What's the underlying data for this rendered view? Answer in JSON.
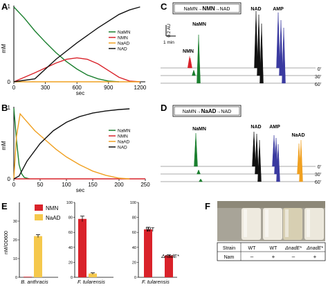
{
  "panels": {
    "A": {
      "letter": "A",
      "ylabel": "mM",
      "xlabel": "sec",
      "yticks": [
        "0",
        "1"
      ],
      "xticks": [
        "0",
        "300",
        "600",
        "900",
        "1200"
      ],
      "legend": [
        "NaMN",
        "NMN",
        "NaAD",
        "NAD"
      ]
    },
    "B": {
      "letter": "B",
      "ylabel": "mM",
      "xlabel": "sec",
      "yticks": [
        "0",
        "1"
      ],
      "xticks": [
        "0",
        "50",
        "100",
        "150",
        "200",
        "250"
      ],
      "legend": [
        "NaMN",
        "NMN",
        "NaAD",
        "NAD"
      ]
    },
    "C": {
      "letter": "C",
      "pathway": [
        "NaMN",
        "NMN",
        "NAD"
      ],
      "peaks": [
        "NaMN",
        "NMN",
        "NAD",
        "AMP"
      ],
      "scale_v": "0.2 AU",
      "scale_h": "1 min",
      "times": [
        "0'",
        "30'",
        "60'"
      ]
    },
    "D": {
      "letter": "D",
      "pathway": [
        "NaMN",
        "NaAD",
        "NAD"
      ],
      "peaks": [
        "NaMN",
        "NAD",
        "AMP",
        "NaAD"
      ],
      "times": [
        "0'",
        "30'",
        "60'"
      ]
    },
    "E": {
      "letter": "E",
      "ylabel": "nM/OD600",
      "legend": [
        "NMN",
        "NaAD"
      ],
      "group1": {
        "label": "B. anthracis",
        "yticks": [
          "0",
          "10",
          "20",
          "30"
        ]
      },
      "group2": {
        "label": "F. tularensis",
        "yticks": [
          "0",
          "20",
          "40",
          "60",
          "80",
          "100"
        ]
      },
      "group3": {
        "label": "F. tularensis",
        "yticks": [
          "0",
          "20",
          "40",
          "60",
          "80",
          "100"
        ],
        "wt": "WT",
        "mutant": "ΔnadE*"
      }
    },
    "F": {
      "letter": "F",
      "row1_label": "Strain",
      "row2_label": "Nam",
      "strains": [
        "WT",
        "WT",
        "ΔnadE*",
        "ΔnadE*"
      ],
      "nam": [
        "–",
        "+",
        "–",
        "+"
      ]
    }
  },
  "colors": {
    "NaMN": "#1a7f2e",
    "NMN": "#d9222a",
    "NaAD": "#f0a020",
    "NAD": "#111111",
    "AMP": "#3a3aa0",
    "Bar2": "#f5c84c"
  },
  "chart_data": [
    {
      "type": "line",
      "panel": "A",
      "xlabel": "sec",
      "ylabel": "mM",
      "xlim": [
        0,
        1250
      ],
      "ylim": [
        0,
        1
      ],
      "series": [
        {
          "name": "NaMN",
          "x": [
            0,
            100,
            200,
            300,
            400,
            500,
            600,
            700,
            800,
            900,
            1000
          ],
          "y": [
            1,
            0.85,
            0.68,
            0.53,
            0.39,
            0.27,
            0.17,
            0.09,
            0.04,
            0.01,
            0
          ]
        },
        {
          "name": "NMN",
          "x": [
            0,
            200,
            400,
            500,
            600,
            700,
            800,
            900,
            1000,
            1100,
            1200
          ],
          "y": [
            0,
            0.12,
            0.25,
            0.3,
            0.32,
            0.3,
            0.24,
            0.15,
            0.06,
            0.01,
            0
          ]
        },
        {
          "name": "NaAD",
          "x": [
            0,
            1200
          ],
          "y": [
            0,
            0
          ]
        },
        {
          "name": "NAD",
          "x": [
            0,
            200,
            400,
            600,
            800,
            1000,
            1100,
            1200
          ],
          "y": [
            0,
            0.04,
            0.3,
            0.52,
            0.72,
            0.9,
            0.96,
            1
          ]
        }
      ]
    },
    {
      "type": "line",
      "panel": "B",
      "xlabel": "sec",
      "ylabel": "mM",
      "xlim": [
        0,
        250
      ],
      "ylim": [
        0,
        1
      ],
      "series": [
        {
          "name": "NaMN",
          "x": [
            0,
            5,
            10,
            15,
            20,
            30
          ],
          "y": [
            1,
            0.55,
            0.2,
            0.07,
            0.02,
            0
          ]
        },
        {
          "name": "NMN",
          "x": [
            0,
            250
          ],
          "y": [
            0,
            0
          ]
        },
        {
          "name": "NaAD",
          "x": [
            0,
            5,
            12,
            20,
            40,
            60,
            80,
            100,
            125,
            150,
            175,
            200,
            220
          ],
          "y": [
            0,
            0.6,
            0.92,
            0.85,
            0.68,
            0.55,
            0.42,
            0.31,
            0.2,
            0.11,
            0.05,
            0.01,
            0
          ]
        },
        {
          "name": "NAD",
          "x": [
            0,
            10,
            25,
            50,
            75,
            100,
            125,
            150,
            175,
            200,
            220
          ],
          "y": [
            0,
            0.04,
            0.25,
            0.5,
            0.68,
            0.8,
            0.88,
            0.93,
            0.96,
            0.98,
            0.99
          ]
        }
      ]
    },
    {
      "type": "bar",
      "panel": "E",
      "groups": [
        "B. anthracis",
        "F. tularensis",
        "F. tularensis"
      ],
      "series": [
        {
          "name": "NMN",
          "values": [
            0.3,
            78,
            64
          ]
        },
        {
          "name": "NaAD",
          "values": [
            22,
            5,
            null
          ]
        }
      ],
      "mutant_NMN": 29
    }
  ]
}
